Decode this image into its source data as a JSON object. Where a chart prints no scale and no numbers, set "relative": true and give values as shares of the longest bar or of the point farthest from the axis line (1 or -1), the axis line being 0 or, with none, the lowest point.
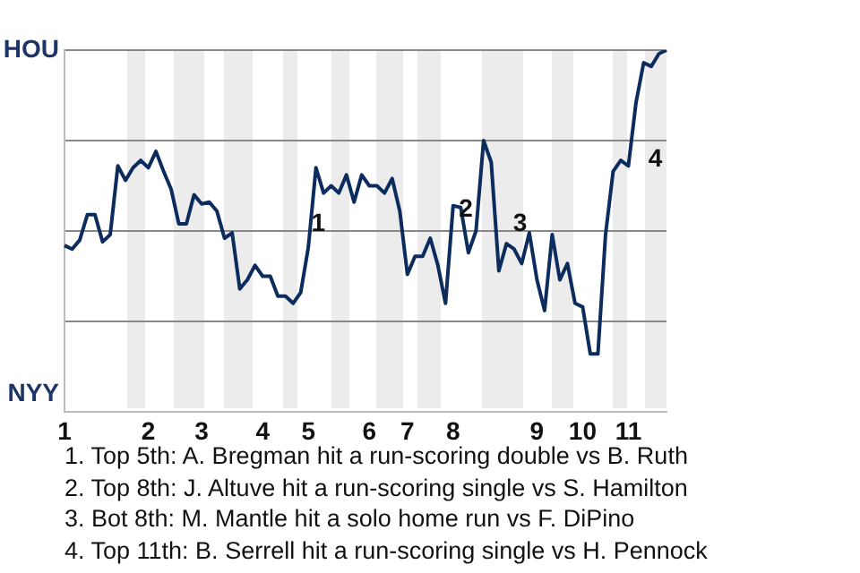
{
  "chart_data": {
    "type": "line",
    "relative": true,
    "categories": [
      "1",
      null,
      null,
      null,
      null,
      null,
      null,
      null,
      null,
      null,
      null,
      "2",
      null,
      null,
      null,
      null,
      null,
      null,
      "3",
      null,
      null,
      null,
      null,
      null,
      null,
      null,
      "4",
      null,
      null,
      null,
      null,
      null,
      "5",
      null,
      null,
      null,
      null,
      null,
      null,
      null,
      "6",
      null,
      null,
      null,
      null,
      "7",
      null,
      null,
      null,
      null,
      null,
      "8",
      null,
      null,
      null,
      null,
      null,
      null,
      null,
      null,
      null,
      null,
      "9",
      null,
      null,
      null,
      null,
      null,
      "10",
      null,
      null,
      null,
      null,
      null,
      "11",
      null,
      null,
      null,
      null,
      null
    ],
    "grid": "y",
    "legend": false,
    "marker": "none",
    "line_style": "solid",
    "series": [
      {
        "color": "#0c2c5e",
        "values": [
          0.46,
          0.45,
          0.475,
          0.545,
          0.545,
          0.47,
          0.49,
          0.68,
          0.64,
          0.675,
          0.695,
          0.675,
          0.72,
          0.665,
          0.615,
          0.52,
          0.52,
          0.6,
          0.575,
          0.58,
          0.555,
          0.48,
          0.495,
          0.34,
          0.365,
          0.405,
          0.375,
          0.375,
          0.32,
          0.32,
          0.3,
          0.33,
          0.455,
          0.675,
          0.605,
          0.625,
          0.605,
          0.655,
          0.58,
          0.655,
          0.625,
          0.625,
          0.605,
          0.645,
          0.555,
          0.38,
          0.43,
          0.43,
          0.48,
          0.405,
          0.3,
          0.57,
          0.565,
          0.44,
          0.5,
          0.75,
          0.69,
          0.39,
          0.465,
          0.45,
          0.41,
          0.495,
          0.365,
          0.28,
          0.49,
          0.365,
          0.41,
          0.3,
          0.29,
          0.16,
          0.16,
          0.49,
          0.665,
          0.695,
          0.68,
          0.855,
          0.965,
          0.955,
          0.99,
          1.0
        ]
      }
    ],
    "annotations": [
      "HOU",
      "NYY",
      "1",
      "2",
      "3",
      "4",
      "1. Top 5th: A. Bregman hit a run-scoring double vs B. Ruth",
      "2. Top 8th: J. Altuve hit a run-scoring single vs S. Hamilton",
      "3. Bot 8th: M. Mantle hit a solo home run vs F. DiPino",
      "4. Top 11th: B. Serrell hit a run-scoring single vs H. Pennock"
    ]
  }
}
